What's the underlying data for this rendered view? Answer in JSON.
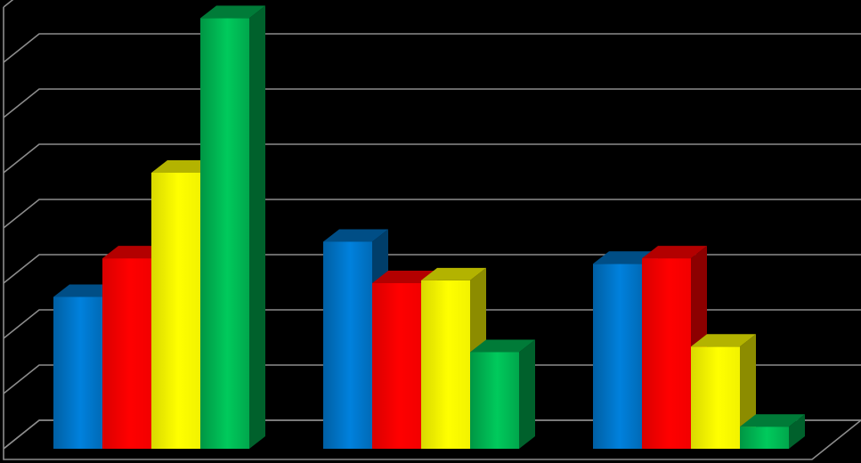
{
  "chart_data": {
    "type": "bar",
    "style": "3d-clustered",
    "title": "",
    "xlabel": "",
    "ylabel": "",
    "categories": [
      "",
      "",
      ""
    ],
    "ylim": [
      0,
      8
    ],
    "gridlines": 8,
    "grid": true,
    "legend": "none",
    "series": [
      {
        "color": "#0070C0",
        "values": [
          2.75,
          3.75,
          3.35
        ]
      },
      {
        "color": "#FF0000",
        "values": [
          3.45,
          3.0,
          3.45
        ]
      },
      {
        "color": "#FFFF00",
        "values": [
          5.0,
          3.05,
          1.85
        ]
      },
      {
        "color": "#00B050",
        "values": [
          7.8,
          1.75,
          0.4
        ]
      }
    ]
  }
}
